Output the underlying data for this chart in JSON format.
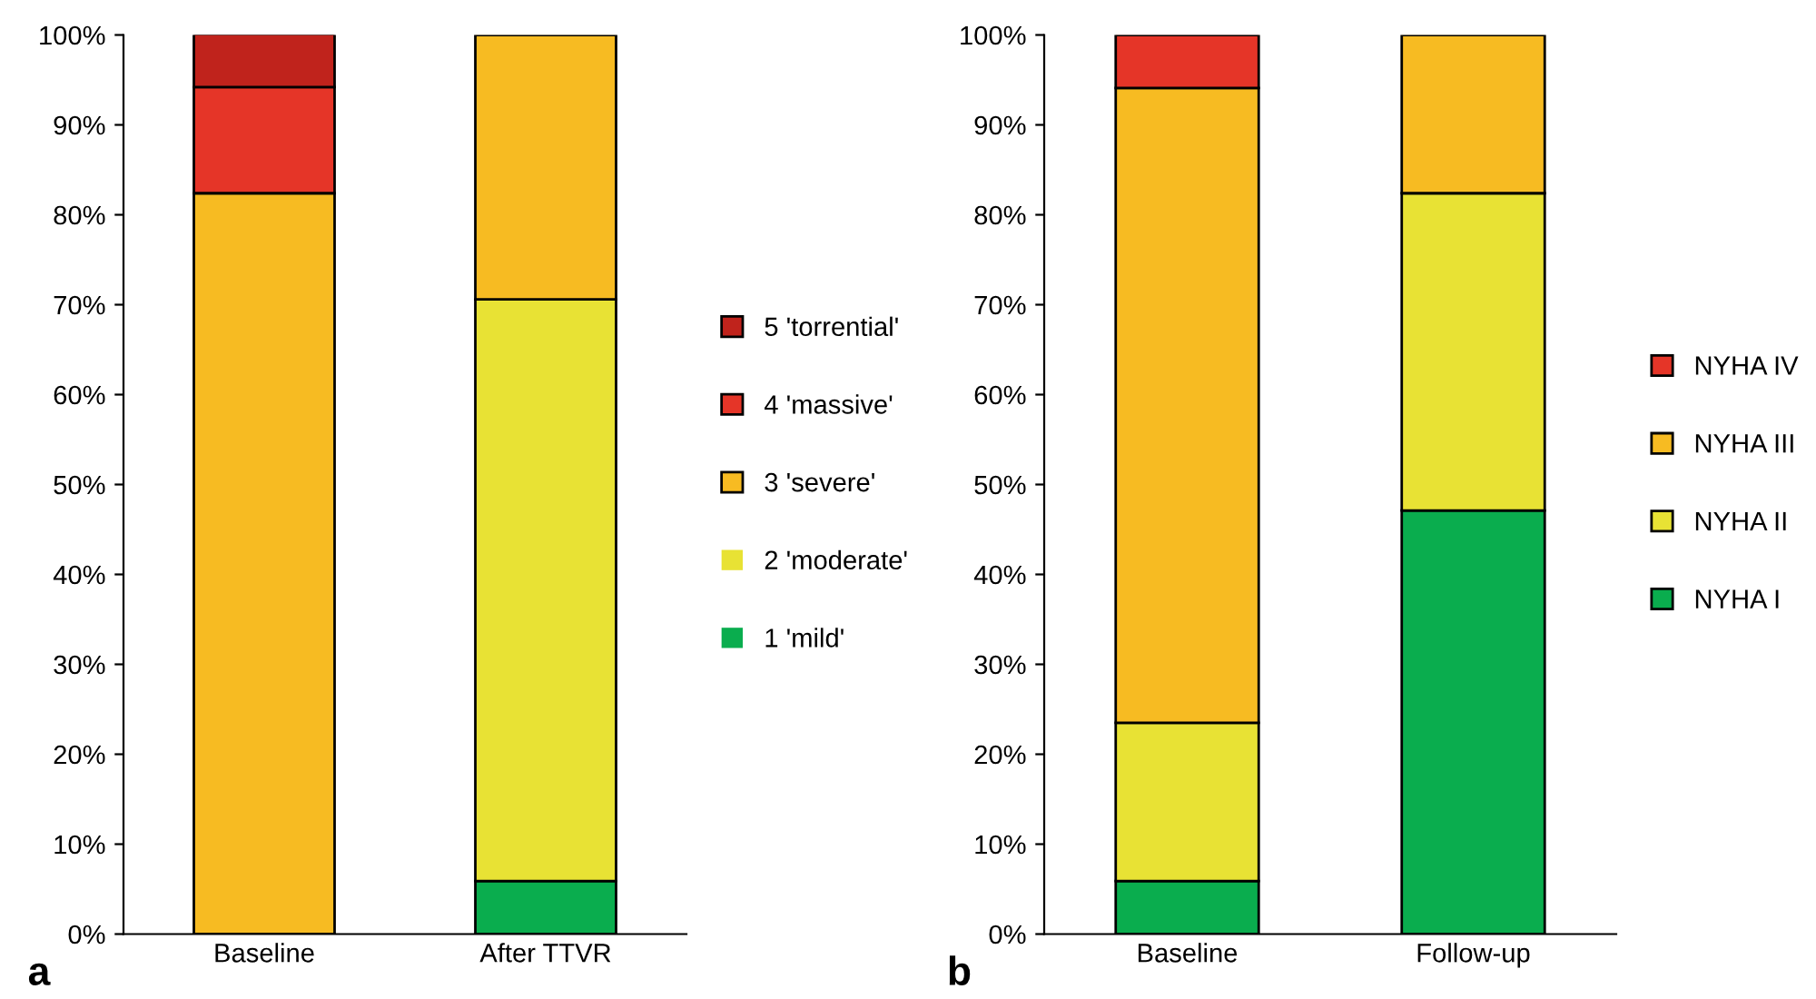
{
  "chart_data": [
    {
      "type": "bar",
      "stacked": true,
      "categories": [
        "Baseline",
        "After TTVR"
      ],
      "ylim": [
        0,
        100
      ],
      "yticks": [
        {
          "value": 0,
          "label": "0%"
        },
        {
          "value": 10,
          "label": "10%"
        },
        {
          "value": 20,
          "label": "20%"
        },
        {
          "value": 30,
          "label": "30%"
        },
        {
          "value": 40,
          "label": "40%"
        },
        {
          "value": 50,
          "label": "50%"
        },
        {
          "value": 60,
          "label": "60%"
        },
        {
          "value": 70,
          "label": "70%"
        },
        {
          "value": 80,
          "label": "80%"
        },
        {
          "value": 90,
          "label": "90%"
        },
        {
          "value": 100,
          "label": "100%"
        }
      ],
      "grid": false,
      "legend": "right",
      "annotations": [
        "a"
      ],
      "series": [
        {
          "name": "1 'mild'",
          "color": "#0aad4e",
          "values": [
            0,
            5.9
          ]
        },
        {
          "name": "2 'moderate'",
          "color": "#e8e234",
          "values": [
            0,
            64.7
          ]
        },
        {
          "name": "3 'severe'",
          "color": "#f7bb22",
          "values": [
            82.4,
            29.4
          ]
        },
        {
          "name": "4 'massive'",
          "color": "#e53528",
          "values": [
            11.8,
            0
          ]
        },
        {
          "name": "5 'torrential'",
          "color": "#c0231c",
          "values": [
            5.9,
            0
          ]
        }
      ]
    },
    {
      "type": "bar",
      "stacked": true,
      "categories": [
        "Baseline",
        "Follow-up"
      ],
      "ylim": [
        0,
        100
      ],
      "yticks": [
        {
          "value": 0,
          "label": "0%"
        },
        {
          "value": 10,
          "label": "10%"
        },
        {
          "value": 20,
          "label": "20%"
        },
        {
          "value": 30,
          "label": "30%"
        },
        {
          "value": 40,
          "label": "40%"
        },
        {
          "value": 50,
          "label": "50%"
        },
        {
          "value": 60,
          "label": "60%"
        },
        {
          "value": 70,
          "label": "70%"
        },
        {
          "value": 80,
          "label": "80%"
        },
        {
          "value": 90,
          "label": "90%"
        },
        {
          "value": 100,
          "label": "100%"
        }
      ],
      "grid": false,
      "legend": "right",
      "annotations": [
        "b"
      ],
      "series": [
        {
          "name": "NYHA I",
          "color": "#0aad4e",
          "values": [
            5.9,
            47.1
          ]
        },
        {
          "name": "NYHA II",
          "color": "#e8e234",
          "values": [
            17.6,
            35.3
          ]
        },
        {
          "name": "NYHA III",
          "color": "#f7bb22",
          "values": [
            70.6,
            17.6
          ]
        },
        {
          "name": "NYHA IV",
          "color": "#e53528",
          "values": [
            5.9,
            0
          ]
        }
      ]
    }
  ]
}
